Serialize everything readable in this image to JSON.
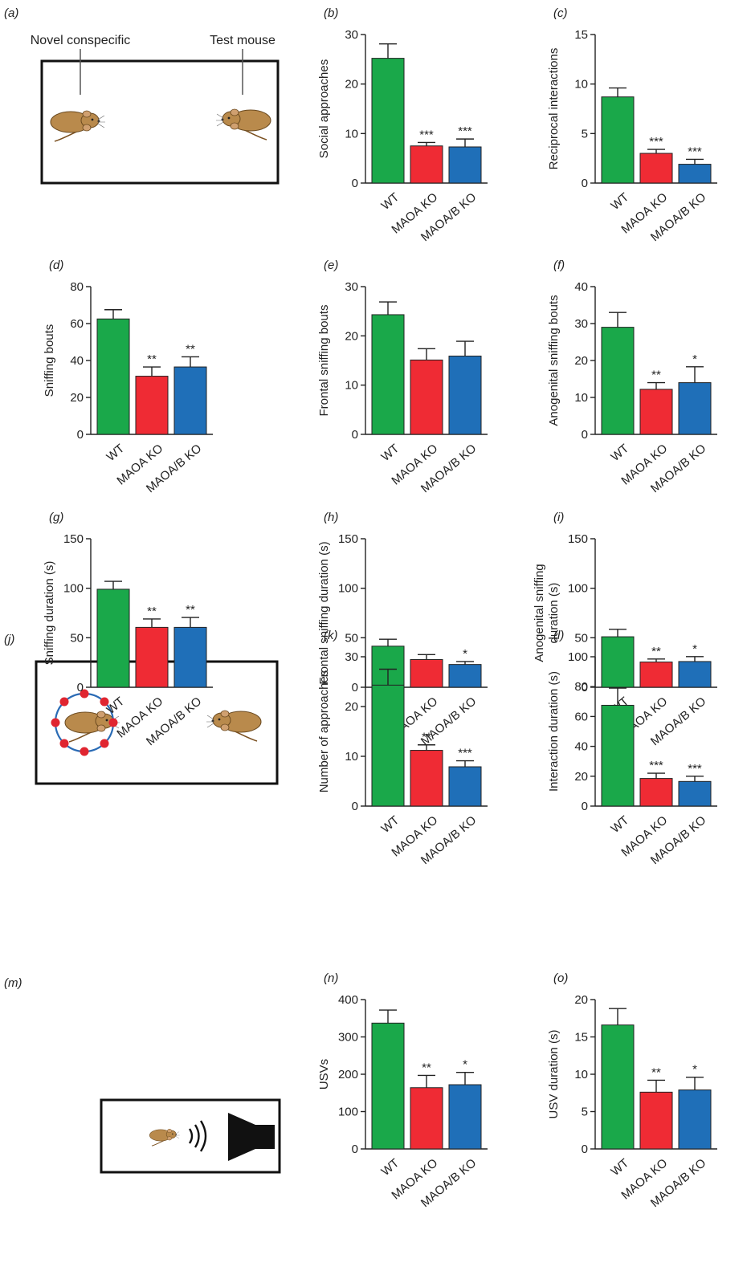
{
  "colors": {
    "WT": "#1aa84a",
    "MAOA KO": "#ef2b34",
    "MAOA/B KO": "#1f6fb8",
    "axis": "#222222"
  },
  "panels": {
    "a": {
      "label": "(a)",
      "novel_label": "Novel conspecific",
      "test_label": "Test mouse"
    },
    "j": {
      "label": "(j)"
    },
    "m": {
      "label": "(m)"
    }
  },
  "icons": [
    "mouse-icon",
    "wire-cage-icon",
    "sound-waves-icon",
    "speaker-icon"
  ],
  "chart_data": [
    {
      "id": "b",
      "type": "bar",
      "panel_label": "(b)",
      "ylabel": [
        "Social approaches"
      ],
      "ylim": [
        0,
        30
      ],
      "yticks": [
        "0",
        "10",
        "20",
        "30"
      ],
      "categories": [
        "WT",
        "MAOA KO",
        "MAOA/B KO"
      ],
      "values": [
        25.2,
        7.5,
        7.3
      ],
      "errors": [
        2.9,
        0.7,
        1.6
      ],
      "significance": [
        "",
        "***",
        "***"
      ]
    },
    {
      "id": "c",
      "type": "bar",
      "panel_label": "(c)",
      "ylabel": [
        "Reciprocal interactions"
      ],
      "ylim": [
        0,
        15
      ],
      "yticks": [
        "0",
        "5",
        "10",
        "15"
      ],
      "categories": [
        "WT",
        "MAOA KO",
        "MAOA/B KO"
      ],
      "values": [
        8.7,
        3.0,
        1.9
      ],
      "errors": [
        0.9,
        0.4,
        0.5
      ],
      "significance": [
        "",
        "***",
        "***"
      ]
    },
    {
      "id": "d",
      "type": "bar",
      "panel_label": "(d)",
      "ylabel": [
        "Sniffing bouts"
      ],
      "ylim": [
        0,
        80
      ],
      "yticks": [
        "0",
        "20",
        "40",
        "60",
        "80"
      ],
      "categories": [
        "WT",
        "MAOA KO",
        "MAOA/B KO"
      ],
      "values": [
        62.5,
        31.5,
        36.5
      ],
      "errors": [
        5,
        5,
        5.5
      ],
      "significance": [
        "",
        "**",
        "**"
      ]
    },
    {
      "id": "e",
      "type": "bar",
      "panel_label": "(e)",
      "ylabel": [
        "Frontal sniffing bouts"
      ],
      "ylim": [
        0,
        30
      ],
      "yticks": [
        "0",
        "10",
        "20",
        "30"
      ],
      "categories": [
        "WT",
        "MAOA KO",
        "MAOA/B KO"
      ],
      "values": [
        24.3,
        15.1,
        15.9
      ],
      "errors": [
        2.6,
        2.3,
        3.0
      ],
      "significance": [
        "",
        "",
        ""
      ]
    },
    {
      "id": "f",
      "type": "bar",
      "panel_label": "(f)",
      "ylabel": [
        "Anogenital sniffing bouts"
      ],
      "ylim": [
        0,
        40
      ],
      "yticks": [
        "0",
        "10",
        "20",
        "30",
        "40"
      ],
      "categories": [
        "WT",
        "MAOA KO",
        "MAOA/B KO"
      ],
      "values": [
        29.0,
        12.2,
        14.0
      ],
      "errors": [
        4.0,
        1.8,
        4.3
      ],
      "significance": [
        "",
        "**",
        "*"
      ]
    },
    {
      "id": "g",
      "type": "bar",
      "panel_label": "(g)",
      "ylabel": [
        "Sniffing duration (s)"
      ],
      "ylim": [
        0,
        150
      ],
      "yticks": [
        "0",
        "50",
        "100",
        "150"
      ],
      "categories": [
        "WT",
        "MAOA KO",
        "MAOA/B KO"
      ],
      "values": [
        99,
        60.5,
        60.5
      ],
      "errors": [
        8,
        8.5,
        10
      ],
      "significance": [
        "",
        "**",
        "**"
      ]
    },
    {
      "id": "h",
      "type": "bar",
      "panel_label": "(h)",
      "ylabel": [
        "Frontal sniffing duration (s)"
      ],
      "ylim": [
        0,
        150
      ],
      "yticks": [
        "0",
        "50",
        "100",
        "150"
      ],
      "categories": [
        "WT",
        "MAOA KO",
        "MAOA/B KO"
      ],
      "values": [
        41.5,
        28,
        23
      ],
      "errors": [
        7,
        5,
        3
      ],
      "significance": [
        "",
        "",
        "*"
      ]
    },
    {
      "id": "i",
      "type": "bar",
      "panel_label": "(i)",
      "ylabel": [
        "Anogenital sniffing",
        "duration (s)"
      ],
      "ylim": [
        0,
        150
      ],
      "yticks": [
        "0",
        "50",
        "100",
        "150"
      ],
      "categories": [
        "WT",
        "MAOA KO",
        "MAOA/B KO"
      ],
      "values": [
        51,
        25.5,
        26
      ],
      "errors": [
        7.5,
        3,
        5
      ],
      "significance": [
        "",
        "**",
        "*"
      ]
    },
    {
      "id": "k",
      "type": "bar",
      "panel_label": "(k)",
      "ylabel": [
        "Number of approaches"
      ],
      "ylim": [
        0,
        30
      ],
      "yticks": [
        "0",
        "10",
        "20",
        "30"
      ],
      "categories": [
        "WT",
        "MAOA KO",
        "MAOA/B KO"
      ],
      "values": [
        24.3,
        11.2,
        7.9
      ],
      "errors": [
        3.2,
        1.1,
        1.2
      ],
      "significance": [
        "",
        "**",
        "***"
      ]
    },
    {
      "id": "l",
      "type": "bar",
      "panel_label": "(l)",
      "ylabel": [
        "Interaction duration (s)"
      ],
      "ylim": [
        0,
        100
      ],
      "yticks": [
        "0",
        "20",
        "40",
        "60",
        "80",
        "100"
      ],
      "categories": [
        "WT",
        "MAOA KO",
        "MAOA/B KO"
      ],
      "values": [
        67.5,
        18.5,
        16.5
      ],
      "errors": [
        11.5,
        3.5,
        3.5
      ],
      "significance": [
        "",
        "***",
        "***"
      ]
    },
    {
      "id": "n",
      "type": "bar",
      "panel_label": "(n)",
      "ylabel": [
        "USVs"
      ],
      "ylim": [
        0,
        400
      ],
      "yticks": [
        "0",
        "100",
        "200",
        "300",
        "400"
      ],
      "categories": [
        "WT",
        "MAOA KO",
        "MAOA/B KO"
      ],
      "values": [
        337,
        164,
        172
      ],
      "errors": [
        35,
        33,
        33
      ],
      "significance": [
        "",
        "**",
        "*"
      ]
    },
    {
      "id": "o",
      "type": "bar",
      "panel_label": "(o)",
      "ylabel": [
        "USV duration (s)"
      ],
      "ylim": [
        0,
        20
      ],
      "yticks": [
        "0",
        "5",
        "10",
        "15",
        "20"
      ],
      "categories": [
        "WT",
        "MAOA KO",
        "MAOA/B KO"
      ],
      "values": [
        16.6,
        7.6,
        7.9
      ],
      "errors": [
        2.2,
        1.6,
        1.7
      ],
      "significance": [
        "",
        "**",
        "*"
      ]
    }
  ]
}
